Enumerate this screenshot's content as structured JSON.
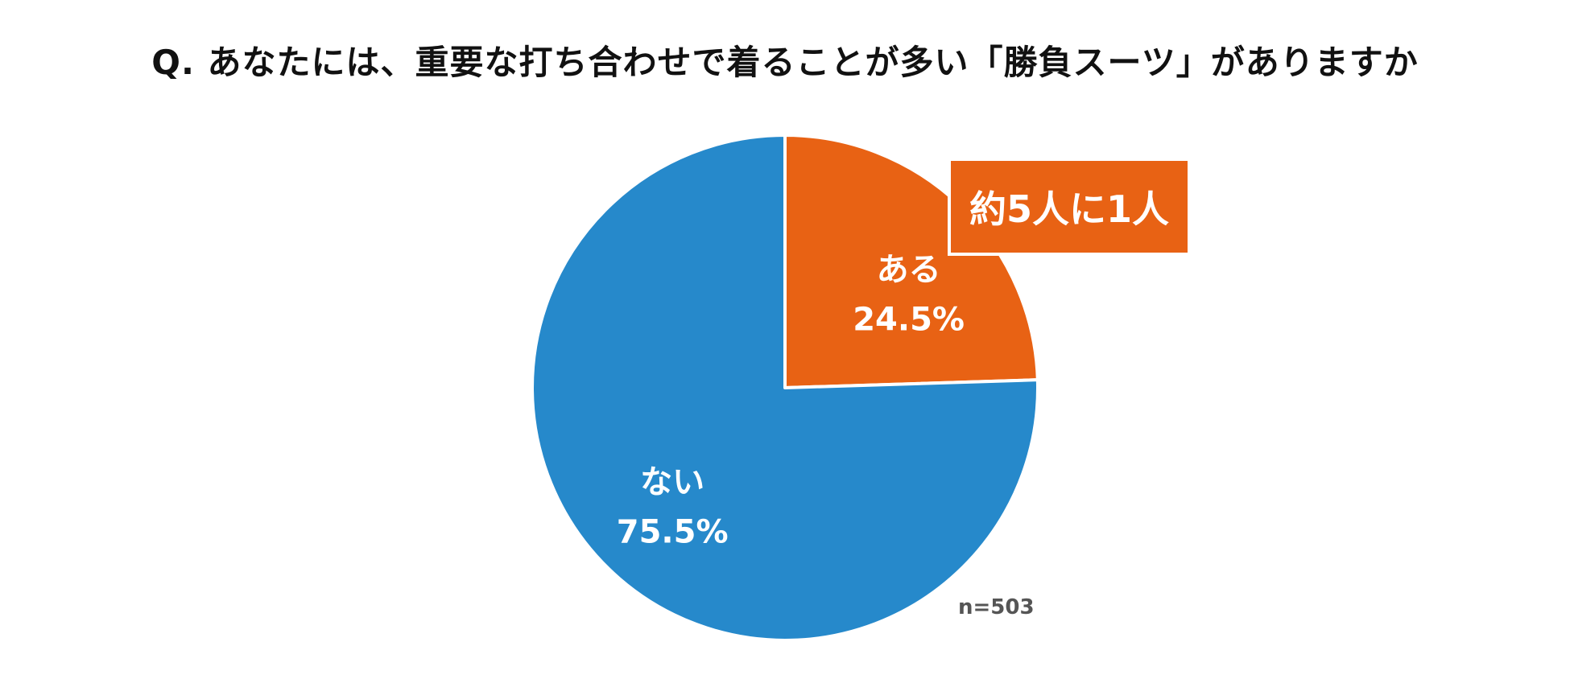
{
  "chart_data": {
    "type": "pie",
    "title": "Q. あなたには、重要な打ち合わせで着ることが多い「勝負スーツ」がありますか",
    "slices": [
      {
        "label": "ある",
        "value": 24.5,
        "value_label": "24.5%",
        "color": "#e86214"
      },
      {
        "label": "ない",
        "value": 75.5,
        "value_label": "75.5%",
        "color": "#2689cb"
      }
    ],
    "start": "12 o'clock",
    "direction": "clockwise",
    "annotation": "約5人に1人",
    "sample_size": "n=503"
  }
}
